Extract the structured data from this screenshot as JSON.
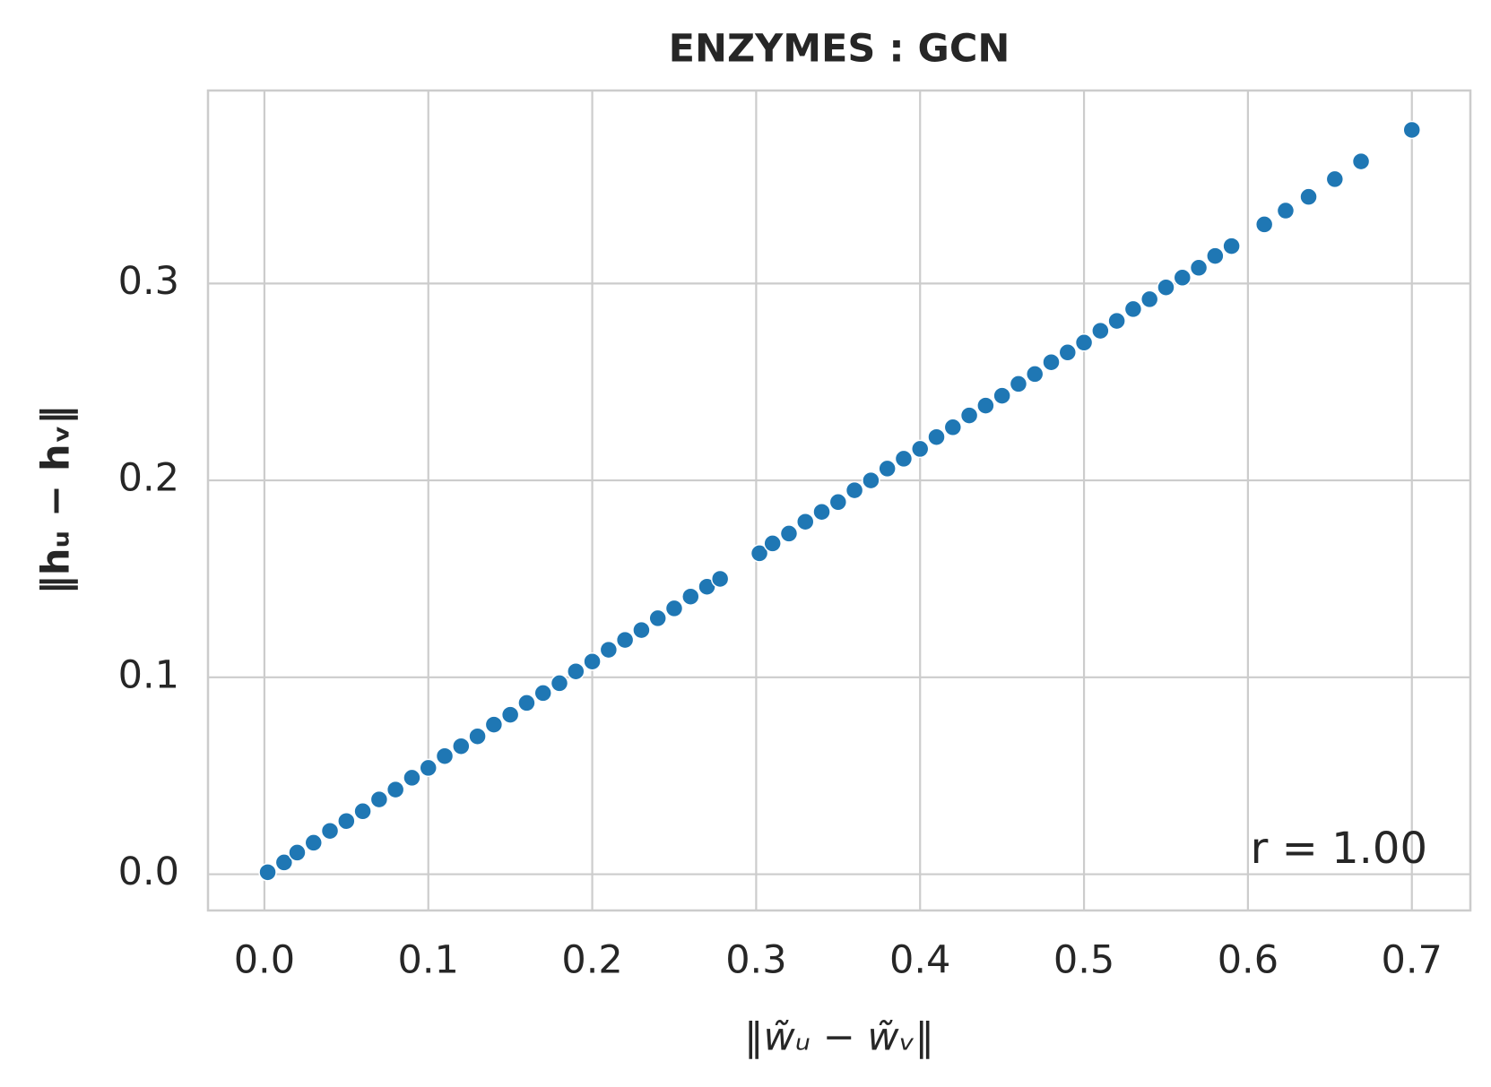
{
  "chart_data": {
    "type": "scatter",
    "title": "ENZYMES : GCN",
    "xlabel": "‖w̃ᵤ − w̃ᵥ‖",
    "ylabel": "‖hᵤ − hᵥ‖",
    "annotation": "r = 1.00",
    "color": "#1f77b4",
    "grid": true,
    "x": [
      0.002,
      0.012,
      0.02,
      0.03,
      0.04,
      0.05,
      0.06,
      0.07,
      0.08,
      0.09,
      0.1,
      0.11,
      0.12,
      0.13,
      0.14,
      0.15,
      0.16,
      0.17,
      0.18,
      0.19,
      0.2,
      0.21,
      0.22,
      0.23,
      0.24,
      0.25,
      0.26,
      0.27,
      0.278,
      0.302,
      0.31,
      0.32,
      0.33,
      0.34,
      0.35,
      0.36,
      0.37,
      0.38,
      0.39,
      0.4,
      0.41,
      0.42,
      0.43,
      0.44,
      0.45,
      0.46,
      0.47,
      0.48,
      0.49,
      0.5,
      0.51,
      0.52,
      0.53,
      0.54,
      0.55,
      0.56,
      0.57,
      0.58,
      0.59,
      0.61,
      0.623,
      0.637,
      0.653,
      0.669,
      0.7
    ],
    "y": [
      0.001,
      0.006,
      0.011,
      0.016,
      0.022,
      0.027,
      0.032,
      0.038,
      0.043,
      0.049,
      0.054,
      0.06,
      0.065,
      0.07,
      0.076,
      0.081,
      0.087,
      0.092,
      0.097,
      0.103,
      0.108,
      0.114,
      0.119,
      0.124,
      0.13,
      0.135,
      0.141,
      0.146,
      0.15,
      0.163,
      0.168,
      0.173,
      0.179,
      0.184,
      0.189,
      0.195,
      0.2,
      0.206,
      0.211,
      0.216,
      0.222,
      0.227,
      0.233,
      0.238,
      0.243,
      0.249,
      0.254,
      0.26,
      0.265,
      0.27,
      0.276,
      0.281,
      0.287,
      0.292,
      0.298,
      0.303,
      0.308,
      0.314,
      0.319,
      0.33,
      0.337,
      0.344,
      0.353,
      0.362,
      0.378
    ],
    "xlim": [
      -0.0344,
      0.7357
    ],
    "ylim": [
      -0.0184,
      0.398
    ],
    "xticks": [
      {
        "value": 0,
        "label": "0.0"
      },
      0.1,
      0.2,
      0.3,
      0.4,
      0.5,
      0.6,
      0.7
    ],
    "yticks": [
      {
        "value": 0,
        "label": "0.0"
      },
      0.1,
      0.2,
      0.3
    ]
  }
}
